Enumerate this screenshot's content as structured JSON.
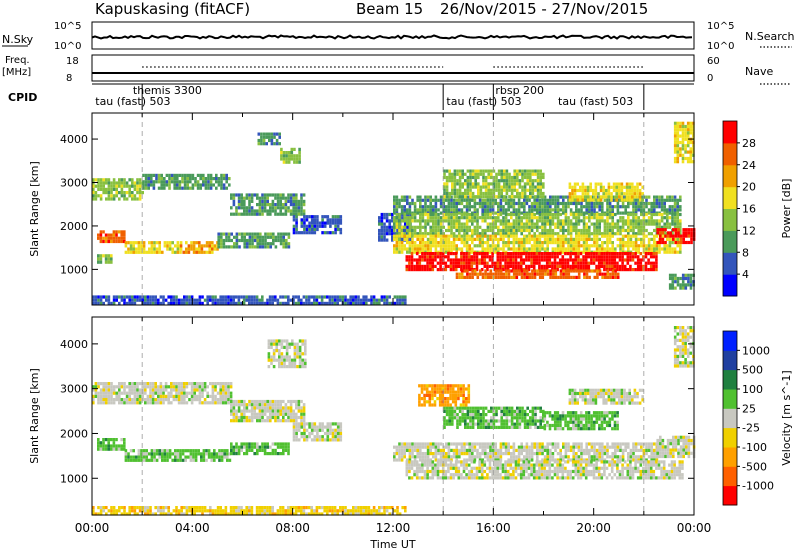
{
  "header": {
    "title": "Kapuskasing (fitACF)",
    "beam": "Beam 15",
    "dates": "26/Nov/2015 - 27/Nov/2015"
  },
  "nsky_panel": {
    "left_label": "N.Sky",
    "right_label": "N.Search",
    "left_ticks": [
      "10^5",
      "10^0"
    ],
    "right_ticks": [
      "10^5",
      "10^0"
    ]
  },
  "freq_panel": {
    "left_label_1": "Freq.",
    "left_label_2": "[MHz]",
    "right_label": "Nave",
    "left_ticks": [
      "18",
      "8"
    ],
    "right_ticks": [
      "60",
      "0"
    ]
  },
  "cpid_panel": {
    "label": "CPID",
    "programs": [
      {
        "text": "tau (fast) 503",
        "start_hour": 0.05
      },
      {
        "text": "themis 3300",
        "start_hour": 1.55
      },
      {
        "text": "tau (fast) 503",
        "start_hour": 14.05
      },
      {
        "text": "rbsp 200",
        "start_hour": 16.0
      },
      {
        "text": "tau (fast) 503",
        "start_hour": 18.5
      }
    ],
    "boundaries_hour": [
      2.0,
      14.0,
      16.0,
      22.0
    ]
  },
  "chart_data": [
    {
      "type": "heatmap",
      "name": "power",
      "ylabel": "Slant Range [km]",
      "yticks": [
        1000,
        2000,
        3000,
        4000
      ],
      "ylim": [
        180,
        4600
      ],
      "xlim_hours": [
        0,
        24
      ],
      "colorbar_label": "Power [dB]",
      "colorbar_ticks": [
        "28",
        "24",
        "20",
        "16",
        "12",
        "8",
        "4"
      ],
      "colors": [
        "#0000ff",
        "#3355bb",
        "#4a9a5a",
        "#88c040",
        "#f0e020",
        "#f0a000",
        "#f06000",
        "#ff0000"
      ],
      "bands": [
        {
          "t0": 0.0,
          "t1": 2.0,
          "r0": 2650,
          "r1": 3100,
          "v": 3
        },
        {
          "t0": 2.0,
          "t1": 5.5,
          "r0": 2850,
          "r1": 3200,
          "v": 2
        },
        {
          "t0": 5.5,
          "t1": 8.5,
          "r0": 2300,
          "r1": 2750,
          "v": 2
        },
        {
          "t0": 8.0,
          "t1": 9.9,
          "r0": 1850,
          "r1": 2250,
          "v": 1
        },
        {
          "t0": 0.2,
          "t1": 1.3,
          "r0": 1650,
          "r1": 1900,
          "v": 6
        },
        {
          "t0": 1.3,
          "t1": 3.5,
          "r0": 1400,
          "r1": 1650,
          "v": 4
        },
        {
          "t0": 3.5,
          "t1": 5.0,
          "r0": 1400,
          "r1": 1650,
          "v": 5
        },
        {
          "t0": 5.0,
          "t1": 7.8,
          "r0": 1550,
          "r1": 1850,
          "v": 2
        },
        {
          "t0": 0.2,
          "t1": 0.8,
          "r0": 1150,
          "r1": 1350,
          "v": 3
        },
        {
          "t0": 6.6,
          "t1": 7.5,
          "r0": 3900,
          "r1": 4150,
          "v": 2
        },
        {
          "t0": 7.5,
          "t1": 8.3,
          "r0": 3500,
          "r1": 3800,
          "v": 3
        },
        {
          "t0": 0.0,
          "t1": 12.5,
          "r0": 250,
          "r1": 400,
          "v": 1
        },
        {
          "t0": 11.4,
          "t1": 12.7,
          "r0": 1700,
          "r1": 2300,
          "v": 1
        },
        {
          "t0": 12.0,
          "t1": 23.5,
          "r0": 2300,
          "r1": 2700,
          "v": 2
        },
        {
          "t0": 12.0,
          "t1": 23.5,
          "r0": 1800,
          "r1": 2300,
          "v": 3
        },
        {
          "t0": 12.0,
          "t1": 23.5,
          "r0": 1400,
          "r1": 1800,
          "v": 4
        },
        {
          "t0": 12.5,
          "t1": 22.5,
          "r0": 1000,
          "r1": 1400,
          "v": 7
        },
        {
          "t0": 14.5,
          "t1": 21.0,
          "r0": 800,
          "r1": 1000,
          "v": 6
        },
        {
          "t0": 22.5,
          "t1": 24.0,
          "r0": 1600,
          "r1": 1950,
          "v": 7
        },
        {
          "t0": 14.0,
          "t1": 18.0,
          "r0": 2700,
          "r1": 3300,
          "v": 3
        },
        {
          "t0": 19.0,
          "t1": 22.0,
          "r0": 2600,
          "r1": 3000,
          "v": 4
        },
        {
          "t0": 23.2,
          "t1": 24.0,
          "r0": 3500,
          "r1": 4400,
          "v": 4
        },
        {
          "t0": 23.0,
          "t1": 24.0,
          "r0": 600,
          "r1": 900,
          "v": 2
        }
      ]
    },
    {
      "type": "heatmap",
      "name": "velocity",
      "ylabel": "Slant Range [km]",
      "yticks": [
        1000,
        2000,
        3000,
        4000
      ],
      "ylim": [
        180,
        4600
      ],
      "xlim_hours": [
        0,
        24
      ],
      "colorbar_label": "Velocity [m s^-1]",
      "colorbar_ticks": [
        "1000",
        "500",
        "100",
        "25",
        "-25",
        "-100",
        "-500",
        "-1000"
      ],
      "colors": [
        "#ff0000",
        "#ff6000",
        "#ffa000",
        "#f0d000",
        "#c8c8c0",
        "#50c030",
        "#208040",
        "#2040a0",
        "#0020ff"
      ],
      "bands": [
        {
          "t0": 0.0,
          "t1": 5.5,
          "r0": 2650,
          "r1": 3150,
          "v": 4
        },
        {
          "t0": 5.5,
          "t1": 8.5,
          "r0": 2300,
          "r1": 2750,
          "v": 4
        },
        {
          "t0": 8.0,
          "t1": 9.9,
          "r0": 1850,
          "r1": 2250,
          "v": 4
        },
        {
          "t0": 0.2,
          "t1": 1.3,
          "r0": 1650,
          "r1": 1900,
          "v": 5
        },
        {
          "t0": 1.3,
          "t1": 5.5,
          "r0": 1400,
          "r1": 1650,
          "v": 5
        },
        {
          "t0": 5.5,
          "t1": 7.8,
          "r0": 1550,
          "r1": 1800,
          "v": 5
        },
        {
          "t0": 0.0,
          "t1": 12.5,
          "r0": 220,
          "r1": 380,
          "v": 3
        },
        {
          "t0": 7.0,
          "t1": 8.5,
          "r0": 3500,
          "r1": 4100,
          "v": 4
        },
        {
          "t0": 12.0,
          "t1": 22.5,
          "r0": 1400,
          "r1": 1800,
          "v": 4
        },
        {
          "t0": 12.5,
          "t1": 23.5,
          "r0": 1000,
          "r1": 1400,
          "v": 4
        },
        {
          "t0": 14.0,
          "t1": 18.0,
          "r0": 2100,
          "r1": 2600,
          "v": 5
        },
        {
          "t0": 18.0,
          "t1": 21.0,
          "r0": 2100,
          "r1": 2500,
          "v": 5
        },
        {
          "t0": 19.0,
          "t1": 22.0,
          "r0": 2700,
          "r1": 3000,
          "v": 4
        },
        {
          "t0": 22.5,
          "t1": 24.0,
          "r0": 1500,
          "r1": 1950,
          "v": 4
        },
        {
          "t0": 23.2,
          "t1": 24.0,
          "r0": 3500,
          "r1": 4400,
          "v": 4
        },
        {
          "t0": 13.0,
          "t1": 15.0,
          "r0": 2600,
          "r1": 3100,
          "v": 2
        }
      ]
    }
  ],
  "x_axis": {
    "label": "Time UT",
    "ticks": [
      "00:00",
      "04:00",
      "08:00",
      "12:00",
      "16:00",
      "20:00",
      "00:00"
    ]
  }
}
